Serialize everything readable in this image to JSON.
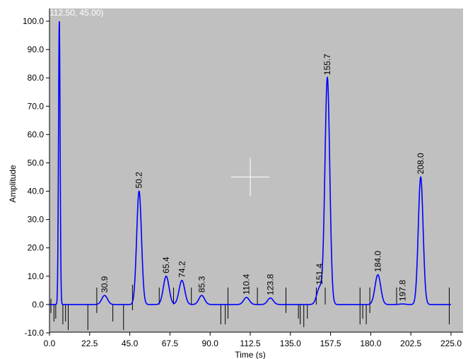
{
  "chart_data": {
    "type": "line",
    "title": "",
    "xlabel": "Time (s)",
    "ylabel": "Amplitude",
    "xlim": [
      0,
      225
    ],
    "ylim": [
      -10,
      100
    ],
    "x_ticks": [
      "0.0",
      "22.5",
      "45.0",
      "67.5",
      "90.0",
      "112.5",
      "135.0",
      "157.5",
      "180.0",
      "202.5",
      "225.0"
    ],
    "x_tick_values": [
      0,
      22.5,
      45,
      67.5,
      90,
      112.5,
      135,
      157.5,
      180,
      202.5,
      225
    ],
    "y_ticks": [
      "-10.0",
      "0.0",
      "10.0",
      "20.0",
      "30.0",
      "40.0",
      "50.0",
      "60.0",
      "70.0",
      "80.0",
      "90.0",
      "100.0"
    ],
    "y_tick_values": [
      -10,
      0,
      10,
      20,
      30,
      40,
      50,
      60,
      70,
      80,
      90,
      100
    ],
    "grid": false,
    "cursor_readout": "(112.50, 45.00)",
    "cursor": {
      "x": 112.5,
      "y": 45.0
    },
    "colors": {
      "background": "#c0c0c0",
      "trace": "#0000ff",
      "cursor": "#ffffff",
      "markers": "#000000"
    },
    "peaks": [
      {
        "x": 5.5,
        "height": 100,
        "label": ""
      },
      {
        "x": 30.9,
        "height": 3.2,
        "label": "30.9"
      },
      {
        "x": 50.2,
        "height": 40,
        "label": "50.2"
      },
      {
        "x": 65.4,
        "height": 10,
        "label": "65.4"
      },
      {
        "x": 74.2,
        "height": 8.5,
        "label": "74.2"
      },
      {
        "x": 85.3,
        "height": 3.2,
        "label": "85.3"
      },
      {
        "x": 110.4,
        "height": 2.5,
        "label": "110.4"
      },
      {
        "x": 123.8,
        "height": 2.3,
        "label": "123.8"
      },
      {
        "x": 151.4,
        "height": 6,
        "label": "151.4"
      },
      {
        "x": 155.7,
        "height": 80,
        "label": "155.7"
      },
      {
        "x": 184.0,
        "height": 10.5,
        "label": "184.0"
      },
      {
        "x": 197.8,
        "height": 0.2,
        "label": "197.8"
      },
      {
        "x": 208.0,
        "height": 45,
        "label": "208.0"
      }
    ],
    "markers": [
      {
        "x": 0.8,
        "y1": -3,
        "y2": 2
      },
      {
        "x": 2.5,
        "y1": -6,
        "y2": 0
      },
      {
        "x": 3.5,
        "y1": -5,
        "y2": 0
      },
      {
        "x": 7.5,
        "y1": -7,
        "y2": 0
      },
      {
        "x": 9.0,
        "y1": -6,
        "y2": 0
      },
      {
        "x": 10.5,
        "y1": -9,
        "y2": 0
      },
      {
        "x": 21.5,
        "y1": -9,
        "y2": 0
      },
      {
        "x": 26.5,
        "y1": -3,
        "y2": 6
      },
      {
        "x": 35.5,
        "y1": -6,
        "y2": 0
      },
      {
        "x": 41.5,
        "y1": -9,
        "y2": 0
      },
      {
        "x": 46.5,
        "y1": -2,
        "y2": 7
      },
      {
        "x": 61.5,
        "y1": 0,
        "y2": 6
      },
      {
        "x": 69.5,
        "y1": 0,
        "y2": 6
      },
      {
        "x": 79.5,
        "y1": 0,
        "y2": 6
      },
      {
        "x": 96.0,
        "y1": -7,
        "y2": 0
      },
      {
        "x": 98.5,
        "y1": -7,
        "y2": 0
      },
      {
        "x": 100.0,
        "y1": -5,
        "y2": 6
      },
      {
        "x": 116.5,
        "y1": 0,
        "y2": 6
      },
      {
        "x": 132.5,
        "y1": -3,
        "y2": 6
      },
      {
        "x": 139.5,
        "y1": -5,
        "y2": 0
      },
      {
        "x": 140.5,
        "y1": -7,
        "y2": 0
      },
      {
        "x": 142.5,
        "y1": -8,
        "y2": 0
      },
      {
        "x": 144.5,
        "y1": -5,
        "y2": 0
      },
      {
        "x": 149.5,
        "y1": 0,
        "y2": 6
      },
      {
        "x": 154.5,
        "y1": 0,
        "y2": 6
      },
      {
        "x": 174.0,
        "y1": -7,
        "y2": 6
      },
      {
        "x": 175.5,
        "y1": -5,
        "y2": 0
      },
      {
        "x": 177.5,
        "y1": -7,
        "y2": 0
      },
      {
        "x": 179.5,
        "y1": -3,
        "y2": 6
      },
      {
        "x": 194.5,
        "y1": 0,
        "y2": 6
      },
      {
        "x": 224.0,
        "y1": -7,
        "y2": 6
      }
    ]
  }
}
